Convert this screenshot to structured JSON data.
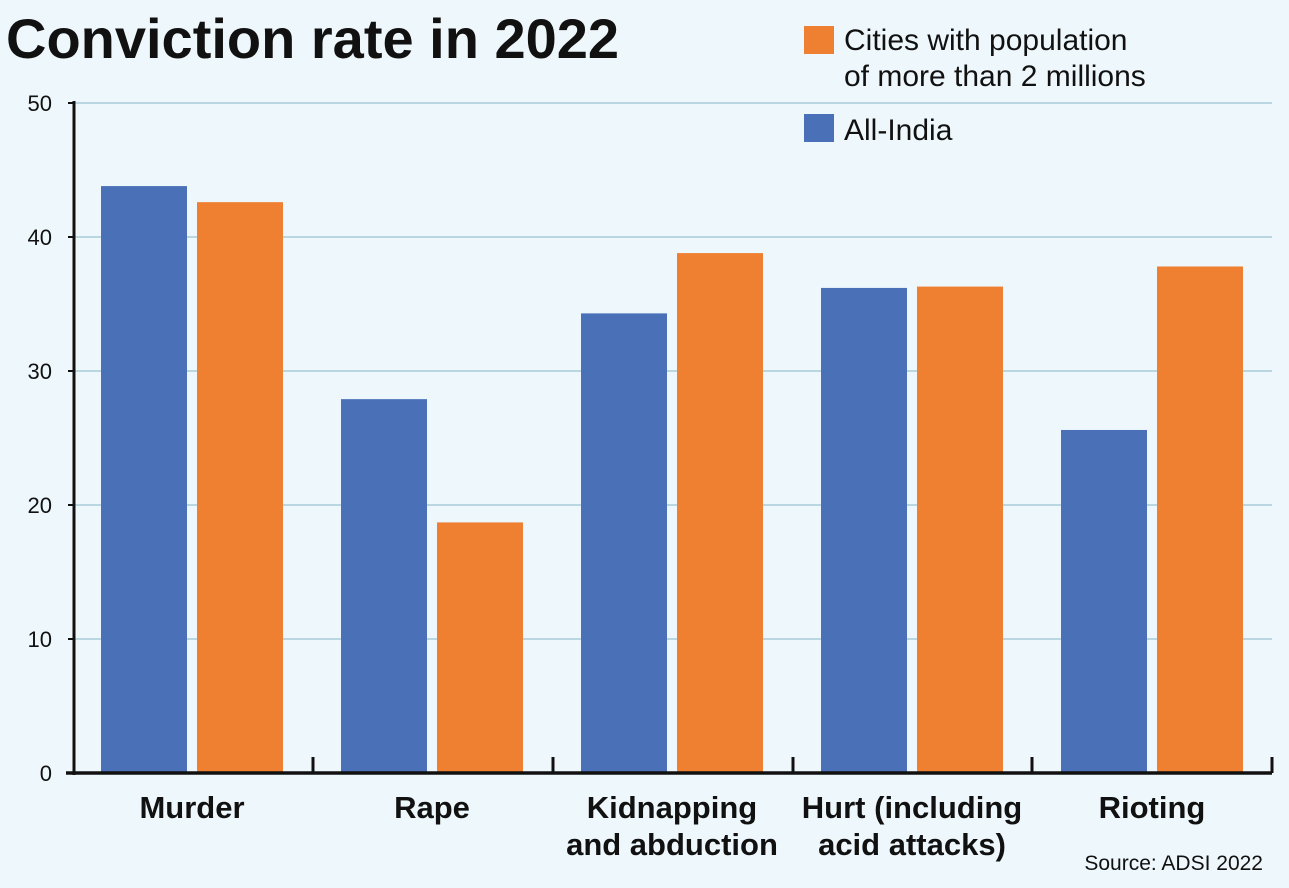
{
  "chart_data": {
    "type": "bar",
    "title": "Conviction rate in 2022",
    "categories": [
      [
        "Murder"
      ],
      [
        "Rape"
      ],
      [
        "Kidnapping",
        "and abduction"
      ],
      [
        "Hurt (including",
        "acid attacks)"
      ],
      [
        "Rioting"
      ]
    ],
    "series": [
      {
        "name": "All-India",
        "color": "#4a71b8",
        "values": [
          43.8,
          27.9,
          34.3,
          36.2,
          25.6
        ]
      },
      {
        "name": "Cities with population of more than 2 millions",
        "legend_lines": [
          "Cities with population",
          "of more than 2 millions"
        ],
        "color": "#ef7f31",
        "values": [
          42.6,
          18.7,
          38.8,
          36.3,
          37.8
        ]
      }
    ],
    "ylim": [
      0,
      50
    ],
    "yticks": [
      "0",
      "10",
      "20",
      "30",
      "40",
      "50"
    ],
    "ytick_values": [
      0,
      10,
      20,
      30,
      40,
      50
    ],
    "grid": true,
    "legend_placement": "top-right",
    "source": "Source: ADSI 2022"
  }
}
